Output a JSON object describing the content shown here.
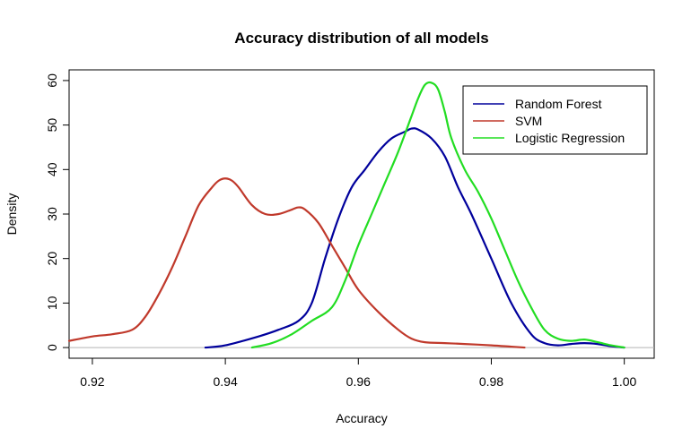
{
  "chart_data": {
    "type": "line",
    "title": "Accuracy distribution of all models",
    "xlabel": "Accuracy",
    "ylabel": "Density",
    "xlim": [
      0.9165,
      1.0045
    ],
    "ylim": [
      -2.4,
      62.4
    ],
    "x_ticks": [
      0.92,
      0.94,
      0.96,
      0.98,
      1.0
    ],
    "x_tick_labels": [
      "0.92",
      "0.94",
      "0.96",
      "0.98",
      "1.00"
    ],
    "y_ticks": [
      0,
      10,
      20,
      30,
      40,
      50,
      60
    ],
    "y_tick_labels": [
      "0",
      "10",
      "20",
      "30",
      "40",
      "50",
      "60"
    ],
    "baseline": 0,
    "grid": false,
    "legend_position": "top-right",
    "series": [
      {
        "name": "Random Forest",
        "color": "#00009c",
        "x": [
          0.937,
          0.94,
          0.945,
          0.948,
          0.951,
          0.953,
          0.955,
          0.957,
          0.959,
          0.961,
          0.963,
          0.965,
          0.967,
          0.968,
          0.969,
          0.971,
          0.973,
          0.975,
          0.977,
          0.98,
          0.983,
          0.986,
          0.988,
          0.99,
          0.992,
          0.994,
          0.996,
          0.998,
          1.0
        ],
        "y": [
          0,
          0.5,
          2.5,
          4,
          6,
          10,
          20,
          29,
          36,
          40,
          44,
          47,
          48.5,
          49.2,
          49,
          47,
          43,
          36,
          30,
          20,
          10,
          3,
          1,
          0.5,
          0.8,
          1,
          0.8,
          0.3,
          0
        ]
      },
      {
        "name": "SVM",
        "color": "#c0392b",
        "x": [
          0.9165,
          0.92,
          0.923,
          0.926,
          0.928,
          0.93,
          0.932,
          0.934,
          0.936,
          0.938,
          0.939,
          0.94,
          0.941,
          0.942,
          0.944,
          0.946,
          0.948,
          0.95,
          0.951,
          0.952,
          0.954,
          0.956,
          0.958,
          0.96,
          0.963,
          0.966,
          0.968,
          0.97,
          0.973,
          0.976,
          0.98,
          0.983,
          0.985
        ],
        "y": [
          1.5,
          2.5,
          3,
          4,
          7,
          12,
          18,
          25,
          32,
          36,
          37.5,
          38,
          37.5,
          36,
          32,
          30,
          30,
          31,
          31.5,
          31,
          28,
          23,
          18,
          13,
          8,
          4,
          2,
          1.2,
          1,
          0.8,
          0.5,
          0.2,
          0
        ]
      },
      {
        "name": "Logistic Regression",
        "color": "#22dd22",
        "x": [
          0.944,
          0.947,
          0.95,
          0.953,
          0.956,
          0.958,
          0.96,
          0.962,
          0.964,
          0.966,
          0.968,
          0.969,
          0.97,
          0.971,
          0.972,
          0.973,
          0.974,
          0.976,
          0.978,
          0.98,
          0.982,
          0.984,
          0.986,
          0.988,
          0.99,
          0.992,
          0.994,
          0.996,
          0.998,
          1.0
        ],
        "y": [
          0,
          1,
          3,
          6,
          9,
          15,
          23,
          30,
          37,
          44,
          52,
          56,
          59,
          59.5,
          58,
          53,
          47,
          40,
          35,
          29,
          22,
          15,
          9,
          4,
          2,
          1.5,
          1.8,
          1.2,
          0.5,
          0
        ]
      }
    ]
  }
}
